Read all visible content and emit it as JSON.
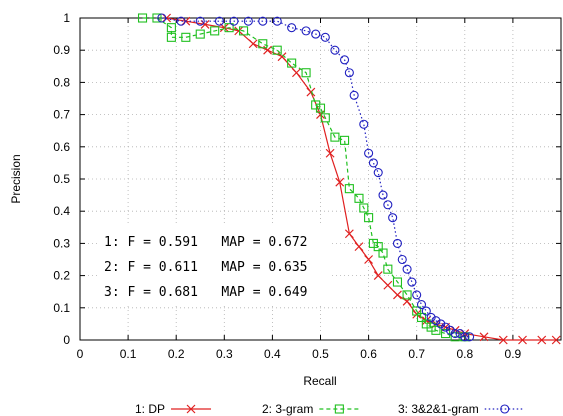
{
  "chart_data": {
    "type": "line",
    "xlabel": "Recall",
    "ylabel": "Precision",
    "xlim": [
      0,
      1
    ],
    "ylim": [
      0,
      1
    ],
    "xticks": [
      "0",
      "0.1",
      "0.2",
      "0.3",
      "0.4",
      "0.5",
      "0.6",
      "0.7",
      "0.8",
      "0.9"
    ],
    "yticks": [
      "0",
      "0.1",
      "0.2",
      "0.3",
      "0.4",
      "0.5",
      "0.6",
      "0.7",
      "0.8",
      "0.9",
      "1"
    ],
    "grid": true,
    "legend_position": "bottom",
    "series": [
      {
        "name": "1: DP",
        "color": "#e02020",
        "marker": "x",
        "line": "solid",
        "points": [
          [
            0.18,
            1.0
          ],
          [
            0.22,
            0.99
          ],
          [
            0.26,
            0.98
          ],
          [
            0.3,
            0.97
          ],
          [
            0.33,
            0.96
          ],
          [
            0.36,
            0.92
          ],
          [
            0.39,
            0.9
          ],
          [
            0.42,
            0.88
          ],
          [
            0.45,
            0.83
          ],
          [
            0.48,
            0.77
          ],
          [
            0.5,
            0.7
          ],
          [
            0.52,
            0.58
          ],
          [
            0.54,
            0.49
          ],
          [
            0.56,
            0.33
          ],
          [
            0.58,
            0.29
          ],
          [
            0.6,
            0.25
          ],
          [
            0.62,
            0.2
          ],
          [
            0.64,
            0.17
          ],
          [
            0.66,
            0.14
          ],
          [
            0.68,
            0.12
          ],
          [
            0.7,
            0.08
          ],
          [
            0.72,
            0.06
          ],
          [
            0.74,
            0.05
          ],
          [
            0.76,
            0.04
          ],
          [
            0.78,
            0.03
          ],
          [
            0.8,
            0.02
          ],
          [
            0.84,
            0.01
          ],
          [
            0.88,
            0.0
          ],
          [
            0.92,
            0.0
          ],
          [
            0.96,
            0.0
          ],
          [
            0.99,
            0.0
          ]
        ]
      },
      {
        "name": "2: 3-gram",
        "color": "#20c020",
        "marker": "square",
        "line": "dashed",
        "points": [
          [
            0.13,
            1.0
          ],
          [
            0.16,
            1.0
          ],
          [
            0.19,
            0.97
          ],
          [
            0.19,
            0.94
          ],
          [
            0.22,
            0.94
          ],
          [
            0.25,
            0.95
          ],
          [
            0.28,
            0.96
          ],
          [
            0.31,
            0.97
          ],
          [
            0.34,
            0.96
          ],
          [
            0.38,
            0.92
          ],
          [
            0.41,
            0.9
          ],
          [
            0.44,
            0.86
          ],
          [
            0.47,
            0.83
          ],
          [
            0.49,
            0.73
          ],
          [
            0.5,
            0.72
          ],
          [
            0.51,
            0.69
          ],
          [
            0.53,
            0.63
          ],
          [
            0.55,
            0.62
          ],
          [
            0.56,
            0.47
          ],
          [
            0.58,
            0.44
          ],
          [
            0.59,
            0.41
          ],
          [
            0.6,
            0.38
          ],
          [
            0.61,
            0.3
          ],
          [
            0.62,
            0.29
          ],
          [
            0.63,
            0.27
          ],
          [
            0.64,
            0.22
          ],
          [
            0.66,
            0.18
          ],
          [
            0.68,
            0.14
          ],
          [
            0.7,
            0.09
          ],
          [
            0.71,
            0.07
          ],
          [
            0.72,
            0.05
          ],
          [
            0.73,
            0.04
          ],
          [
            0.74,
            0.03
          ],
          [
            0.76,
            0.02
          ],
          [
            0.78,
            0.01
          ],
          [
            0.8,
            0.01
          ]
        ]
      },
      {
        "name": "3: 3&2&1-gram",
        "color": "#2020c0",
        "marker": "circle",
        "line": "dotted",
        "points": [
          [
            0.17,
            1.0
          ],
          [
            0.21,
            0.99
          ],
          [
            0.25,
            0.99
          ],
          [
            0.29,
            0.99
          ],
          [
            0.32,
            0.99
          ],
          [
            0.35,
            0.99
          ],
          [
            0.38,
            0.99
          ],
          [
            0.41,
            0.99
          ],
          [
            0.44,
            0.97
          ],
          [
            0.47,
            0.96
          ],
          [
            0.49,
            0.95
          ],
          [
            0.51,
            0.94
          ],
          [
            0.53,
            0.9
          ],
          [
            0.55,
            0.87
          ],
          [
            0.56,
            0.83
          ],
          [
            0.57,
            0.76
          ],
          [
            0.59,
            0.67
          ],
          [
            0.6,
            0.58
          ],
          [
            0.61,
            0.55
          ],
          [
            0.62,
            0.52
          ],
          [
            0.63,
            0.45
          ],
          [
            0.64,
            0.42
          ],
          [
            0.65,
            0.38
          ],
          [
            0.66,
            0.3
          ],
          [
            0.67,
            0.25
          ],
          [
            0.68,
            0.22
          ],
          [
            0.69,
            0.18
          ],
          [
            0.7,
            0.14
          ],
          [
            0.71,
            0.11
          ],
          [
            0.72,
            0.09
          ],
          [
            0.73,
            0.07
          ],
          [
            0.74,
            0.06
          ],
          [
            0.75,
            0.05
          ],
          [
            0.76,
            0.04
          ],
          [
            0.77,
            0.03
          ],
          [
            0.78,
            0.02
          ],
          [
            0.79,
            0.02
          ],
          [
            0.8,
            0.01
          ],
          [
            0.81,
            0.01
          ]
        ]
      }
    ],
    "annotations": [
      "1: F = 0.591   MAP = 0.672",
      "2: F = 0.611   MAP = 0.635",
      "3: F = 0.681   MAP = 0.649"
    ]
  }
}
